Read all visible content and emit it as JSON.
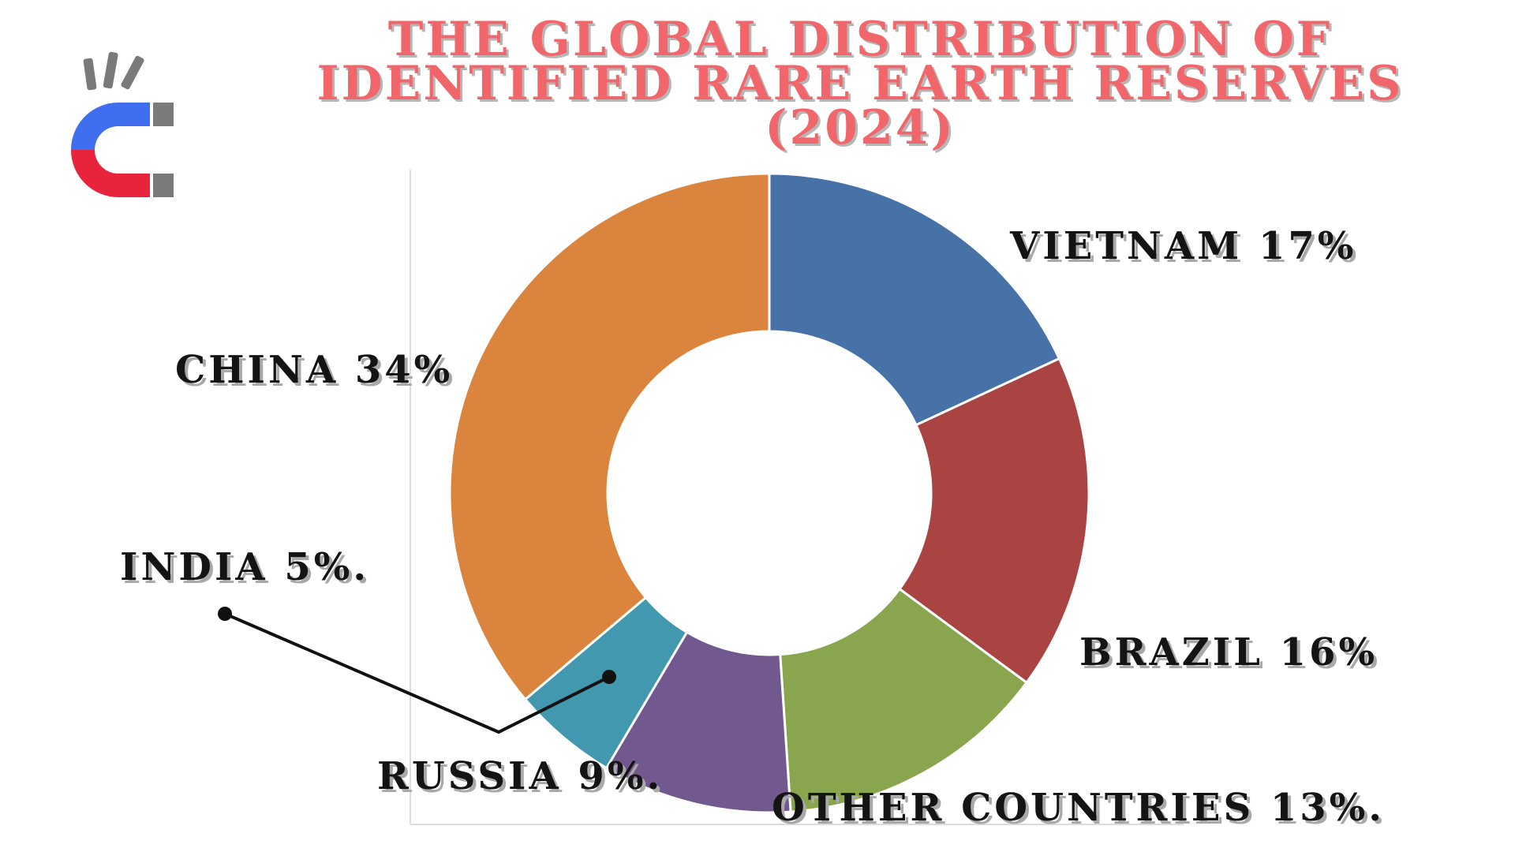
{
  "title_lines": [
    "THE GLOBAL DISTRIBUTION OF",
    "IDENTIFIED RARE EARTH RESERVES",
    "(2024)"
  ],
  "logo": {
    "icon": "magnet-icon",
    "colors": [
      "#3f6ff0",
      "#e8243c",
      "#7a7a7a"
    ]
  },
  "chart_data": {
    "type": "pie",
    "title": "THE GLOBAL DISTRIBUTION OF IDENTIFIED RARE EARTH RESERVES (2024)",
    "donut": true,
    "slices": [
      {
        "label": "VIETNAM 17%",
        "value": 17,
        "color": "#4672a8"
      },
      {
        "label": "BRAZIL 16%",
        "value": 16,
        "color": "#aa4443"
      },
      {
        "label": "OTHER COUNTRIES 13%.",
        "value": 13,
        "color": "#89a54e"
      },
      {
        "label": "RUSSIA 9%.",
        "value": 9,
        "color": "#71588f"
      },
      {
        "label": "INDIA 5%.",
        "value": 5,
        "color": "#4298af"
      },
      {
        "label": "CHINA 34%",
        "value": 34,
        "color": "#db843d"
      }
    ]
  }
}
